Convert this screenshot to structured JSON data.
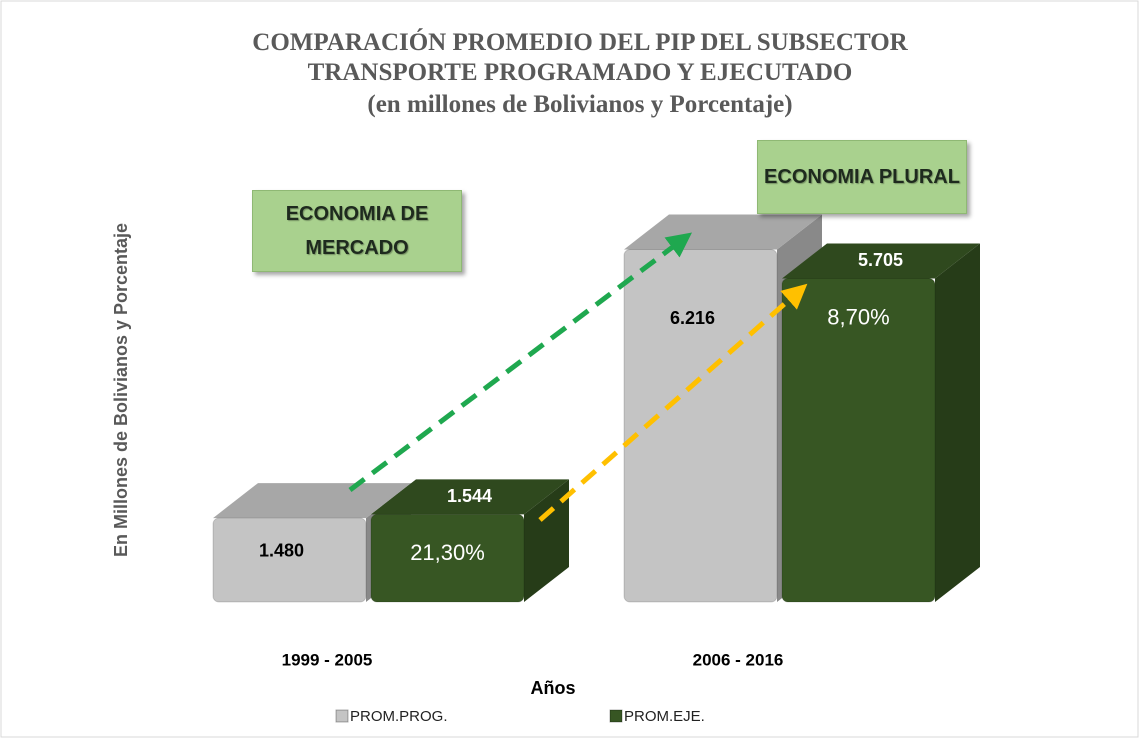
{
  "chart_data": {
    "type": "bar3d",
    "title": "COMPARACIÓN PROMEDIO DEL PIP DEL SUBSECTOR TRANSPORTE PROGRAMADO Y EJECUTADO",
    "subtitle": "(en millones de Bolivianos y Porcentaje)",
    "x_label": "Años",
    "y_label": "En Millones de Bolivianos y Porcentaje",
    "categories": [
      "1999 - 2005",
      "2006 - 2016"
    ],
    "series": [
      {
        "name": "PROM.PROG.",
        "color": "#c4c4c4",
        "values": [
          1480,
          6216
        ],
        "value_labels": [
          "1.480",
          "6.216"
        ]
      },
      {
        "name": "PROM.EJE.",
        "color": "#375623",
        "values": [
          1544,
          5705
        ],
        "value_labels": [
          "1.544",
          "5.705"
        ],
        "percent_labels": [
          "21,30%",
          "8,70%"
        ]
      }
    ],
    "annotations": [
      "ECONOMIA DE MERCADO",
      "ECONOMIA PLURAL"
    ],
    "ylim": [
      0,
      7000
    ],
    "legend": "bottom"
  }
}
